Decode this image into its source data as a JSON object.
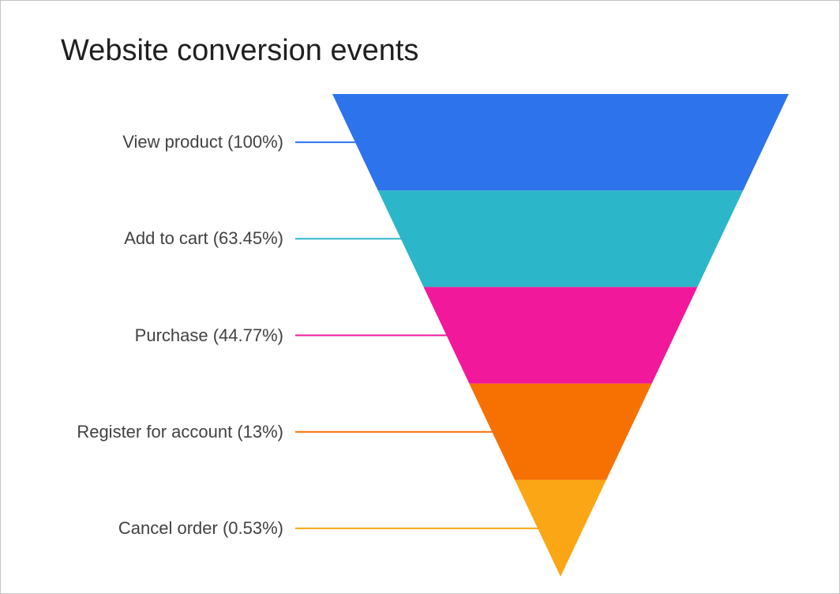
{
  "title": "Website conversion events",
  "chart_data": {
    "type": "funnel",
    "title": "Website conversion events",
    "stages": [
      {
        "label": "View product",
        "percent": 100,
        "display_label": "View product (100%)",
        "color": "#2D73EB"
      },
      {
        "label": "Add to cart",
        "percent": 63.45,
        "display_label": "Add to cart (63.45%)",
        "color": "#2BB6C9"
      },
      {
        "label": "Purchase",
        "percent": 44.77,
        "display_label": "Purchase (44.77%)",
        "color": "#F1189B"
      },
      {
        "label": "Register for account",
        "percent": 13,
        "display_label": "Register for account (13%)",
        "color": "#F77002"
      },
      {
        "label": "Cancel order",
        "percent": 0.53,
        "display_label": "Cancel order (0.53%)",
        "color": "#FBA615"
      }
    ],
    "layout": {
      "shape": "inverted-triangle",
      "equal_height_bands": true,
      "labels_position": "left",
      "connector_lines": true,
      "background": "#ffffff",
      "title_color": "#202020",
      "label_color": "#424242"
    }
  }
}
